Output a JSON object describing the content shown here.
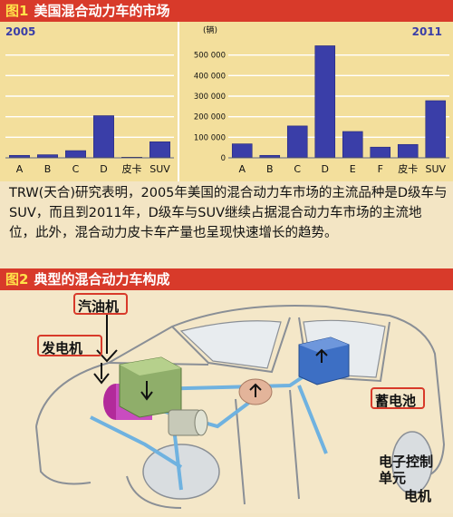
{
  "figure1": {
    "title_tag": "图1",
    "title_text": "美国混合动力车的市场",
    "description": "TRW(天合)研究表明，2005年美国的混合动力车市场的主流品种是D级车与SUV，而且到2011年，D级车与SUV继续占据混合动力车市场的主流地位，此外，混合动力皮卡车产量也呈现快速增长的趋势。"
  },
  "chart_data": [
    {
      "type": "bar",
      "title": "2005",
      "categories": [
        "A",
        "B",
        "C",
        "D",
        "皮卡",
        "SUV"
      ],
      "values": [
        12000,
        15000,
        35000,
        205000,
        3000,
        78000
      ],
      "ylim": [
        0,
        600000
      ],
      "grid": true,
      "color": "#3a3ea8"
    },
    {
      "type": "bar",
      "title": "2011",
      "ylabel": "(辆)",
      "categories": [
        "A",
        "B",
        "C",
        "D",
        "E",
        "F",
        "皮卡",
        "SUV"
      ],
      "values": [
        68000,
        12000,
        155000,
        545000,
        128000,
        52000,
        65000,
        278000
      ],
      "ylim": [
        0,
        600000
      ],
      "yticks": [
        "0",
        "100 000",
        "200 000",
        "300 000",
        "400 000",
        "500 000"
      ],
      "grid": true,
      "color": "#3a3ea8"
    }
  ],
  "figure2": {
    "title_tag": "图2",
    "title_text": "典型的混合动力车构成",
    "labels": {
      "engine": "汽油机",
      "generator": "发电机",
      "battery": "蓄电池",
      "ecu_line1": "电子控制",
      "ecu_line2": "单元",
      "motor": "电机"
    }
  }
}
